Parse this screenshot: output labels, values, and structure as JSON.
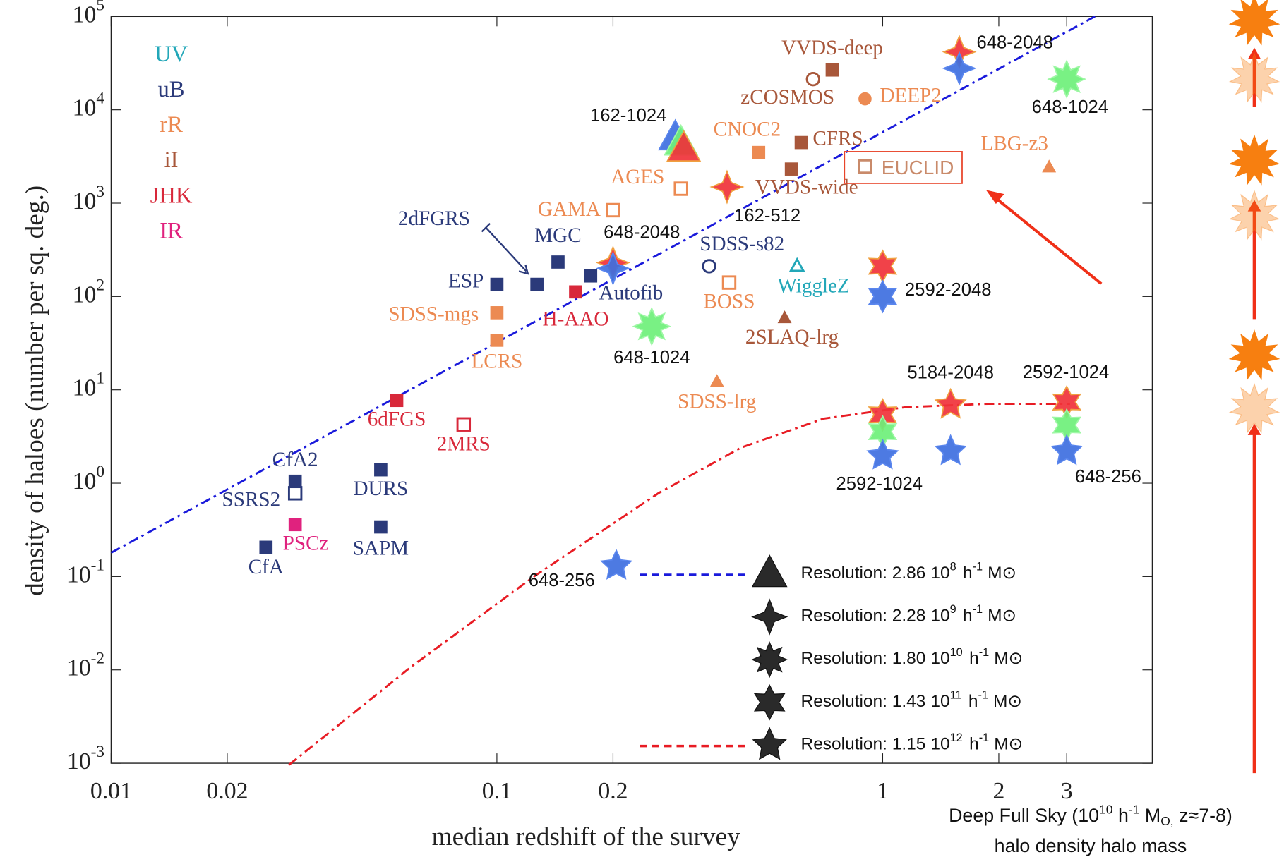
{
  "chart_data": {
    "type": "scatter",
    "x_label": "median redshift of the survey",
    "y_label": "density of haloes (number per sq. deg.)",
    "log_x": true,
    "log_y": true,
    "xlim": [
      0.01,
      5
    ],
    "ylim": [
      0.001,
      100000
    ],
    "xticks": [
      0.01,
      0.02,
      0.1,
      0.2,
      1,
      2,
      3
    ],
    "yticks": [
      {
        "value": 0.001,
        "label": "10",
        "exponent": "-3"
      },
      {
        "value": 0.01,
        "label": "10",
        "exponent": "-2"
      },
      {
        "value": 0.1,
        "label": "10",
        "exponent": "-1"
      },
      {
        "value": 1,
        "label": "10",
        "exponent": "0"
      },
      {
        "value": 10,
        "label": "10",
        "exponent": "1"
      },
      {
        "value": 100,
        "label": "10",
        "exponent": "2"
      },
      {
        "value": 1000,
        "label": "10",
        "exponent": "3"
      },
      {
        "value": 10000,
        "label": "10",
        "exponent": "4"
      },
      {
        "value": 100000,
        "label": "10",
        "exponent": "5"
      }
    ],
    "bands": [
      {
        "name": "UV",
        "color": "#22a7b8"
      },
      {
        "name": "uB",
        "color": "#2b3a7a"
      },
      {
        "name": "rR",
        "color": "#ec8a52"
      },
      {
        "name": "iI",
        "color": "#a8573a"
      },
      {
        "name": "JHK",
        "color": "#d8283a"
      },
      {
        "name": "IR",
        "color": "#e0227e"
      }
    ],
    "points": [
      {
        "name": "CfA",
        "x": 0.0252,
        "y": 0.206,
        "color": "#2b3a7a",
        "marker": "square",
        "filled": true
      },
      {
        "name": "CfA2",
        "x": 0.03,
        "y": 1.05,
        "color": "#2b3a7a",
        "marker": "square",
        "filled": true
      },
      {
        "name": "SSRS2",
        "x": 0.03,
        "y": 0.78,
        "color": "#2b3a7a",
        "marker": "square",
        "filled": false
      },
      {
        "name": "PSCz",
        "x": 0.03,
        "y": 0.36,
        "color": "#e0227e",
        "marker": "square",
        "filled": true
      },
      {
        "name": "DURS",
        "x": 0.05,
        "y": 1.39,
        "color": "#2b3a7a",
        "marker": "square",
        "filled": true
      },
      {
        "name": "SAPM",
        "x": 0.05,
        "y": 0.34,
        "color": "#2b3a7a",
        "marker": "square",
        "filled": true
      },
      {
        "name": "6dFGS",
        "x": 0.055,
        "y": 7.7,
        "color": "#d8283a",
        "marker": "square",
        "filled": true
      },
      {
        "name": "2MRS",
        "x": 0.082,
        "y": 4.26,
        "color": "#d8283a",
        "marker": "square",
        "filled": false
      },
      {
        "name": "ESP",
        "x": 0.1,
        "y": 135,
        "color": "#2b3a7a",
        "marker": "square",
        "filled": true
      },
      {
        "name": "2dFGRS",
        "x": 0.127,
        "y": 135,
        "color": "#2b3a7a",
        "marker": "square",
        "filled": true
      },
      {
        "name": "MGC",
        "x": 0.144,
        "y": 234,
        "color": "#2b3a7a",
        "marker": "square",
        "filled": true
      },
      {
        "name": "Autofib",
        "x": 0.175,
        "y": 166,
        "color": "#2b3a7a",
        "marker": "square",
        "filled": true
      },
      {
        "name": "H-AAO",
        "x": 0.16,
        "y": 112,
        "color": "#d8283a",
        "marker": "square",
        "filled": true
      },
      {
        "name": "SDSS-mgs",
        "x": 0.1,
        "y": 67,
        "color": "#ec8a52",
        "marker": "square",
        "filled": true
      },
      {
        "name": "LCRS",
        "x": 0.1,
        "y": 34,
        "color": "#ec8a52",
        "marker": "square",
        "filled": true
      },
      {
        "name": "GAMA",
        "x": 0.2,
        "y": 841,
        "color": "#ec8a52",
        "marker": "square",
        "filled": false
      },
      {
        "name": "AGES",
        "x": 0.3,
        "y": 1428,
        "color": "#ec8a52",
        "marker": "square",
        "filled": false
      },
      {
        "name": "CNOC2",
        "x": 0.477,
        "y": 3490,
        "color": "#ec8a52",
        "marker": "square",
        "filled": true
      },
      {
        "name": "CFRS",
        "x": 0.615,
        "y": 4460,
        "color": "#a8573a",
        "marker": "square",
        "filled": true
      },
      {
        "name": "VVDS-wide",
        "x": 0.58,
        "y": 2320,
        "color": "#a8573a",
        "marker": "square",
        "filled": true
      },
      {
        "name": "VVDS-deep",
        "x": 0.74,
        "y": 26700,
        "color": "#a8573a",
        "marker": "square",
        "filled": true
      },
      {
        "name": "zCOSMOS",
        "x": 0.66,
        "y": 21300,
        "color": "#a8573a",
        "marker": "circle",
        "filled": false
      },
      {
        "name": "DEEP2",
        "x": 0.9,
        "y": 13100,
        "color": "#ec8a52",
        "marker": "circle",
        "filled": true
      },
      {
        "name": "EUCLID",
        "x": 0.9,
        "y": 2470,
        "color": "#c98a6a",
        "marker": "square",
        "filled": false
      },
      {
        "name": "LBG-z3",
        "x": 2.7,
        "y": 2420,
        "color": "#ec8a52",
        "marker": "triangle",
        "filled": true
      },
      {
        "name": "SDSS-s82",
        "x": 0.355,
        "y": 211,
        "color": "#2b3a7a",
        "marker": "circle",
        "filled": false
      },
      {
        "name": "BOSS",
        "x": 0.4,
        "y": 141,
        "color": "#ec8a52",
        "marker": "square",
        "filled": false
      },
      {
        "name": "WiggleZ",
        "x": 0.6,
        "y": 211,
        "color": "#22a7b8",
        "marker": "triangle",
        "filled": false
      },
      {
        "name": "2SLAQ-lrg",
        "x": 0.557,
        "y": 58.6,
        "color": "#a8573a",
        "marker": "triangle",
        "filled": true
      },
      {
        "name": "SDSS-lrg",
        "x": 0.372,
        "y": 12.2,
        "color": "#ec8a52",
        "marker": "triangle",
        "filled": true
      }
    ],
    "simulations": [
      {
        "label": "162-1024",
        "points": [
          {
            "x": 0.29,
            "y": 5000,
            "color": "#3e6fe0",
            "marker": "triangle"
          },
          {
            "x": 0.3,
            "y": 4400,
            "color": "#6ef07a",
            "marker": "triangle"
          },
          {
            "x": 0.305,
            "y": 3800,
            "color": "#f0323a",
            "marker": "triangle"
          }
        ]
      },
      {
        "label": "162-512",
        "points": [
          {
            "x": 0.395,
            "y": 1490,
            "color": "#f0323a",
            "marker": "diamond"
          }
        ]
      },
      {
        "label": "648-2048",
        "points": [
          {
            "x": 0.2,
            "y": 230,
            "color": "#f0323a",
            "marker": "diamond"
          },
          {
            "x": 0.2,
            "y": 200,
            "color": "#3e6fe0",
            "marker": "diamond"
          }
        ]
      },
      {
        "label": "648-2048",
        "points": [
          {
            "x": 1.58,
            "y": 41700,
            "color": "#f0323a",
            "marker": "diamond"
          },
          {
            "x": 1.58,
            "y": 27800,
            "color": "#3e6fe0",
            "marker": "diamond"
          }
        ]
      },
      {
        "label": "648-1024",
        "points": [
          {
            "x": 0.252,
            "y": 47.8,
            "color": "#6ef07a",
            "marker": "star8"
          }
        ]
      },
      {
        "label": "648-1024",
        "points": [
          {
            "x": 3.0,
            "y": 21300,
            "color": "#6ef07a",
            "marker": "star8"
          }
        ]
      },
      {
        "label": "2592-2048",
        "points": [
          {
            "x": 1.0,
            "y": 211,
            "color": "#f0323a",
            "marker": "star6"
          },
          {
            "x": 1.0,
            "y": 100,
            "color": "#3e6fe0",
            "marker": "star6"
          }
        ]
      },
      {
        "label": "5184-2048",
        "points": [
          {
            "x": 1.5,
            "y": 6.9,
            "color": "#f0323a",
            "marker": "star5"
          },
          {
            "x": 1.5,
            "y": 2.2,
            "color": "#3e6fe0",
            "marker": "star5"
          }
        ]
      },
      {
        "label": "2592-1024",
        "points": [
          {
            "x": 1.0,
            "y": 5.4,
            "color": "#f0323a",
            "marker": "star6"
          },
          {
            "x": 1.0,
            "y": 3.56,
            "color": "#6ef07a",
            "marker": "star6"
          },
          {
            "x": 1.0,
            "y": 1.97,
            "color": "#3e6fe0",
            "marker": "star5"
          }
        ]
      },
      {
        "label": "2592-1024",
        "points": [
          {
            "x": 3.0,
            "y": 7.4,
            "color": "#f0323a",
            "marker": "star6"
          },
          {
            "x": 3.0,
            "y": 4.2,
            "color": "#6ef07a",
            "marker": "star6"
          }
        ]
      },
      {
        "label": "648-256",
        "points": [
          {
            "x": 3.0,
            "y": 2.2,
            "color": "#3e6fe0",
            "marker": "star5"
          }
        ]
      },
      {
        "label": "648-256",
        "points": [
          {
            "x": 0.204,
            "y": 0.13,
            "color": "#3e6fe0",
            "marker": "star5"
          }
        ]
      }
    ],
    "lines": [
      {
        "color": "#1a1adb",
        "style": "dashdot",
        "x": [
          0.01,
          3.55
        ],
        "y": [
          0.18,
          100000
        ]
      },
      {
        "color": "#e81c24",
        "style": "dashdot",
        "x": [
          0.0289,
          0.0603,
          0.126,
          0.263,
          0.43,
          0.702,
          1.15,
          1.87,
          3.06
        ],
        "y": [
          0.00096,
          0.011,
          0.103,
          0.787,
          2.41,
          4.91,
          6.53,
          7.08,
          7.08
        ]
      }
    ],
    "resolutions": [
      {
        "label": "Resolution: 2.86",
        "power": "10",
        "exponent": "8",
        "marker": "triangle",
        "line_color": "#1a1adb"
      },
      {
        "label": "Resolution: 2.28",
        "power": "10",
        "exponent": "9",
        "marker": "diamond",
        "line_color": null
      },
      {
        "label": "Resolution: 1.80",
        "power": "10",
        "exponent": "10",
        "marker": "star8",
        "line_color": null
      },
      {
        "label": "Resolution: 1.43",
        "power": "10",
        "exponent": "11",
        "marker": "star6",
        "line_color": null
      },
      {
        "label": "Resolution: 1.15",
        "power": "10",
        "exponent": "12",
        "marker": "star5",
        "line_color": "#e81c24"
      }
    ],
    "unit": {
      "h": "h",
      "h_exp": "-1",
      "mass": "M⊙"
    },
    "side_caption": {
      "text1": "Deep Full Sky (10",
      "exp1": "10",
      "text2": " h",
      "exp2": "-1",
      "text3": " M",
      "sub3": "O,",
      "text4": " z≈7-8)",
      "line2": "halo density halo mass"
    }
  }
}
